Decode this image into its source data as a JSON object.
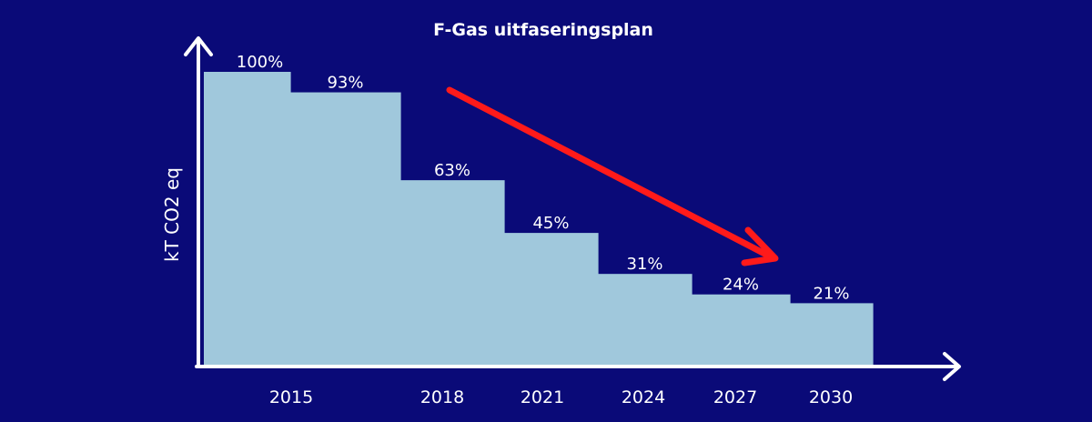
{
  "chart_data": {
    "type": "bar",
    "title": "F-Gas uitfaseringsplan",
    "ylabel": "kT CO2 eq",
    "xlabel": "",
    "bars": [
      {
        "label": "100%",
        "value": 100
      },
      {
        "label": "93%",
        "value": 93
      },
      {
        "label": "63%",
        "value": 63
      },
      {
        "label": "45%",
        "value": 45
      },
      {
        "label": "31%",
        "value": 31
      },
      {
        "label": "24%",
        "value": 24
      },
      {
        "label": "21%",
        "value": 21
      }
    ],
    "x_ticks": [
      "2015",
      "2018",
      "2021",
      "2024",
      "2027",
      "2030"
    ],
    "ylim": [
      0,
      100
    ],
    "grid": false,
    "annotation": "red downward trend arrow",
    "colors": {
      "background": "#0a0a78",
      "bar": "#a0c8dc",
      "axis": "#ffffff",
      "text": "#ffffff",
      "trend_arrow": "#ff1a1a"
    }
  }
}
